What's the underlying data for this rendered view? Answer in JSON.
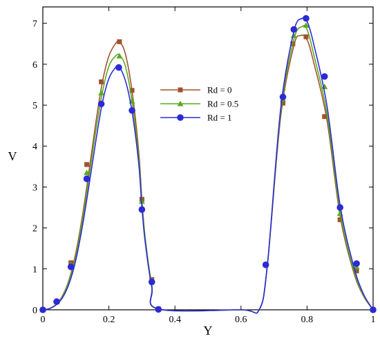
{
  "chart_data": {
    "type": "line",
    "title": "",
    "xlabel": "Y",
    "ylabel": "V",
    "xlim": [
      0,
      1
    ],
    "ylim": [
      0,
      7.4
    ],
    "xticks": [
      0,
      0.2,
      0.4,
      0.6,
      0.8,
      1
    ],
    "xtick_labels": [
      "0",
      "0.2",
      "0.4",
      "0.6",
      "0.8",
      "1"
    ],
    "yticks": [
      0,
      1,
      2,
      3,
      4,
      5,
      6,
      7
    ],
    "ytick_labels": [
      "0",
      "1",
      "2",
      "3",
      "4",
      "5",
      "6",
      "7"
    ],
    "grid": false,
    "legend_position": "center",
    "series": [
      {
        "name": "Rd = 0",
        "color": "#a0522d",
        "marker": "square",
        "curve": [
          [
            0,
            0
          ],
          [
            0.02,
            0.03
          ],
          [
            0.04,
            0.13
          ],
          [
            0.06,
            0.35
          ],
          [
            0.08,
            0.75
          ],
          [
            0.1,
            1.4
          ],
          [
            0.12,
            2.3
          ],
          [
            0.14,
            3.4
          ],
          [
            0.16,
            4.55
          ],
          [
            0.18,
            5.55
          ],
          [
            0.2,
            6.2
          ],
          [
            0.22,
            6.5
          ],
          [
            0.232,
            6.55
          ],
          [
            0.25,
            6.25
          ],
          [
            0.27,
            5.35
          ],
          [
            0.29,
            3.9
          ],
          [
            0.3,
            2.7
          ],
          [
            0.31,
            1.75
          ],
          [
            0.33,
            0.6
          ],
          [
            0.35,
            0.02
          ],
          [
            0.6,
            0
          ],
          [
            0.655,
            0
          ],
          [
            0.68,
            1.1
          ],
          [
            0.72,
            4.7
          ],
          [
            0.76,
            6.45
          ],
          [
            0.78,
            6.7
          ],
          [
            0.8,
            6.6
          ],
          [
            0.82,
            6.05
          ],
          [
            0.86,
            4.65
          ],
          [
            0.9,
            2.3
          ],
          [
            0.94,
            0.95
          ],
          [
            0.97,
            0.35
          ],
          [
            1,
            0
          ]
        ],
        "markers": [
          [
            0,
            0
          ],
          [
            0.042,
            0.2
          ],
          [
            0.085,
            1.15
          ],
          [
            0.133,
            3.55
          ],
          [
            0.177,
            5.57
          ],
          [
            0.232,
            6.55
          ],
          [
            0.27,
            5.36
          ],
          [
            0.3,
            2.7
          ],
          [
            0.33,
            0.74
          ],
          [
            0.35,
            0.02
          ],
          [
            0.675,
            1.1
          ],
          [
            0.727,
            5.05
          ],
          [
            0.757,
            6.5
          ],
          [
            0.797,
            6.67
          ],
          [
            0.853,
            4.72
          ],
          [
            0.9,
            2.2
          ],
          [
            0.95,
            0.95
          ],
          [
            1,
            0
          ]
        ]
      },
      {
        "name": "Rd = 0.5",
        "color": "#5aaa1e",
        "marker": "triangle",
        "curve": [
          [
            0,
            0
          ],
          [
            0.02,
            0.03
          ],
          [
            0.04,
            0.13
          ],
          [
            0.06,
            0.33
          ],
          [
            0.08,
            0.72
          ],
          [
            0.1,
            1.32
          ],
          [
            0.12,
            2.2
          ],
          [
            0.14,
            3.25
          ],
          [
            0.16,
            4.35
          ],
          [
            0.18,
            5.3
          ],
          [
            0.2,
            5.95
          ],
          [
            0.22,
            6.2
          ],
          [
            0.232,
            6.22
          ],
          [
            0.25,
            5.95
          ],
          [
            0.27,
            5.1
          ],
          [
            0.29,
            3.75
          ],
          [
            0.3,
            2.65
          ],
          [
            0.31,
            1.75
          ],
          [
            0.33,
            0.6
          ],
          [
            0.35,
            0.02
          ],
          [
            0.6,
            0
          ],
          [
            0.655,
            0
          ],
          [
            0.68,
            1.1
          ],
          [
            0.72,
            4.8
          ],
          [
            0.76,
            6.6
          ],
          [
            0.785,
            6.92
          ],
          [
            0.8,
            6.85
          ],
          [
            0.82,
            6.25
          ],
          [
            0.86,
            4.8
          ],
          [
            0.9,
            2.4
          ],
          [
            0.94,
            1.0
          ],
          [
            0.97,
            0.37
          ],
          [
            1,
            0
          ]
        ],
        "markers": [
          [
            0,
            0
          ],
          [
            0.042,
            0.2
          ],
          [
            0.085,
            1.1
          ],
          [
            0.133,
            3.35
          ],
          [
            0.177,
            5.3
          ],
          [
            0.232,
            6.2
          ],
          [
            0.27,
            5.1
          ],
          [
            0.3,
            2.65
          ],
          [
            0.33,
            0.7
          ],
          [
            0.35,
            0.02
          ],
          [
            0.675,
            1.1
          ],
          [
            0.727,
            5.15
          ],
          [
            0.76,
            6.7
          ],
          [
            0.797,
            6.95
          ],
          [
            0.853,
            5.45
          ],
          [
            0.9,
            2.35
          ],
          [
            0.95,
            1.05
          ],
          [
            1,
            0
          ]
        ]
      },
      {
        "name": "Rd = 1",
        "color": "#2b2bd6",
        "marker": "circle",
        "curve": [
          [
            0,
            0
          ],
          [
            0.02,
            0.03
          ],
          [
            0.04,
            0.12
          ],
          [
            0.06,
            0.3
          ],
          [
            0.08,
            0.65
          ],
          [
            0.1,
            1.22
          ],
          [
            0.12,
            2.05
          ],
          [
            0.14,
            3.05
          ],
          [
            0.16,
            4.1
          ],
          [
            0.18,
            5.05
          ],
          [
            0.2,
            5.65
          ],
          [
            0.22,
            5.92
          ],
          [
            0.23,
            5.95
          ],
          [
            0.25,
            5.6
          ],
          [
            0.27,
            4.85
          ],
          [
            0.29,
            3.6
          ],
          [
            0.3,
            2.5
          ],
          [
            0.31,
            1.65
          ],
          [
            0.33,
            0.55
          ],
          [
            0.35,
            0.02
          ],
          [
            0.6,
            0
          ],
          [
            0.655,
            0
          ],
          [
            0.68,
            1.1
          ],
          [
            0.72,
            4.9
          ],
          [
            0.76,
            6.8
          ],
          [
            0.785,
            7.12
          ],
          [
            0.8,
            7.05
          ],
          [
            0.82,
            6.5
          ],
          [
            0.86,
            5.0
          ],
          [
            0.9,
            2.55
          ],
          [
            0.94,
            1.1
          ],
          [
            0.97,
            0.4
          ],
          [
            1,
            0
          ]
        ],
        "markers": [
          [
            0,
            0
          ],
          [
            0.042,
            0.2
          ],
          [
            0.085,
            1.05
          ],
          [
            0.133,
            3.2
          ],
          [
            0.177,
            5.03
          ],
          [
            0.23,
            5.92
          ],
          [
            0.27,
            4.87
          ],
          [
            0.3,
            2.45
          ],
          [
            0.33,
            0.68
          ],
          [
            0.35,
            0.01
          ],
          [
            0.675,
            1.1
          ],
          [
            0.727,
            5.2
          ],
          [
            0.76,
            6.85
          ],
          [
            0.797,
            7.12
          ],
          [
            0.853,
            5.7
          ],
          [
            0.9,
            2.5
          ],
          [
            0.95,
            1.13
          ],
          [
            1,
            0
          ]
        ]
      }
    ]
  }
}
